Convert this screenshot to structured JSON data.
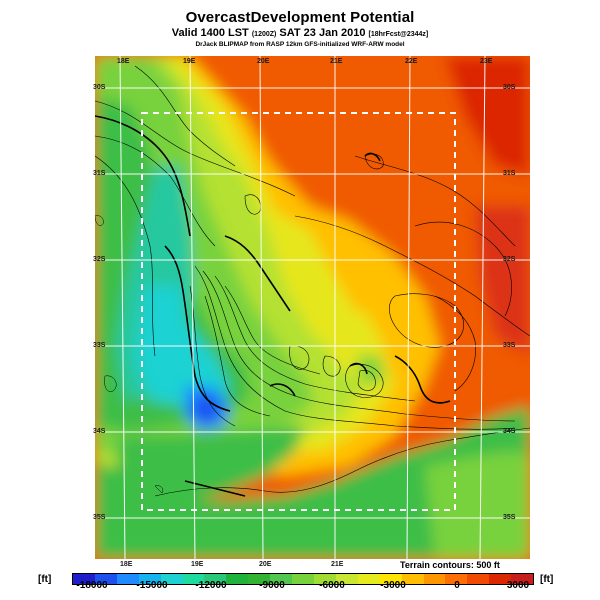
{
  "title": "OvercastDevelopment Potential",
  "subtitle_main": "Valid 1400 LST",
  "subtitle_code": "(1200Z)",
  "subtitle_date": "SAT 23 Jan 2010",
  "subtitle_fcst": "[18hrFcst@2344z]",
  "credit": "DrJack BLIPMAP from RASP 12km GFS-initialized WRF-ARW model",
  "terrain_note": "Terrain contours: 500 ft",
  "unit_left": "[ft]",
  "unit_right": "[ft]",
  "colorbar": {
    "labels": [
      "-18000",
      "-15000",
      "-12000",
      "-9000",
      "-6000",
      "-3000",
      "0",
      "3000"
    ],
    "colors": [
      "#1e1ecd",
      "#1e50f0",
      "#1e8cff",
      "#14b4f0",
      "#1ed2d2",
      "#1edca0",
      "#28c878",
      "#1eb43c",
      "#32b432",
      "#50c850",
      "#78d23c",
      "#a0dc32",
      "#c8e632",
      "#e6eb1e",
      "#ffe600",
      "#ffbe00",
      "#ff9600",
      "#ff6e00",
      "#f04b00",
      "#dc2800",
      "#c81e1e"
    ]
  },
  "map_labels": {
    "top_lon": [
      "18E",
      "19E",
      "20E",
      "21E",
      "22E",
      "23E"
    ],
    "bottom_lon": [
      "18E",
      "19E",
      "20E",
      "21E"
    ],
    "left_lat": [
      "30S",
      "31S",
      "32S",
      "33S",
      "34S",
      "35S"
    ],
    "right_lat": [
      "30S",
      "31S",
      "32S",
      "33S",
      "34S",
      "35S"
    ]
  },
  "icons": {
    "map": "overcast-development-map"
  }
}
